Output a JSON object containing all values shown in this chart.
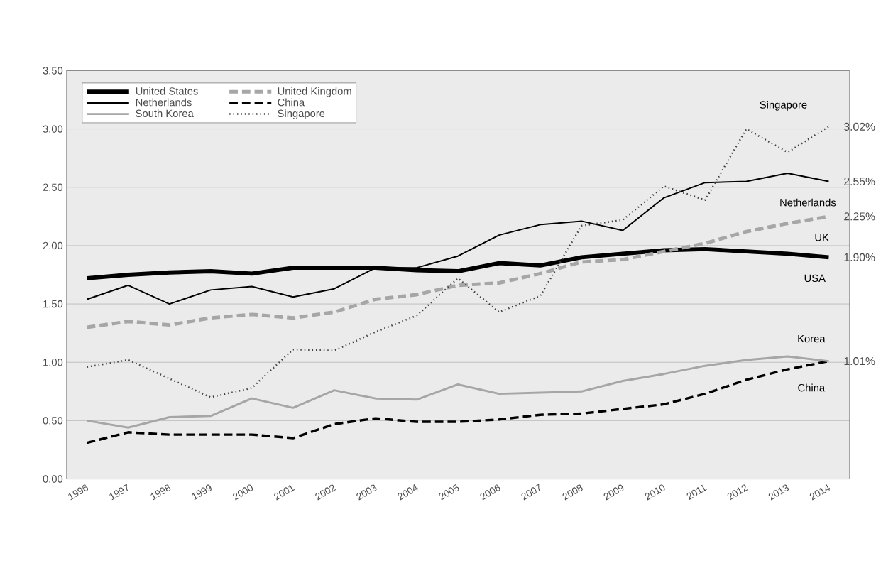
{
  "chart_data": {
    "type": "line",
    "categories": [
      "1996",
      "1997",
      "1998",
      "1999",
      "2000",
      "2001",
      "2002",
      "2003",
      "2004",
      "2005",
      "2006",
      "2007",
      "2008",
      "2009",
      "2010",
      "2011",
      "2012",
      "2013",
      "2014"
    ],
    "series": [
      {
        "name": "United States",
        "color": "#000000",
        "line_style": "solid",
        "values": [
          1.72,
          1.75,
          1.77,
          1.78,
          1.76,
          1.81,
          1.81,
          1.81,
          1.79,
          1.78,
          1.85,
          1.83,
          1.9,
          1.93,
          1.96,
          1.97,
          1.95,
          1.93,
          1.9
        ]
      },
      {
        "name": "United Kingdom",
        "color": "#a6a6a6",
        "line_style": "dashed",
        "values": [
          1.3,
          1.35,
          1.32,
          1.38,
          1.41,
          1.38,
          1.43,
          1.54,
          1.58,
          1.66,
          1.68,
          1.76,
          1.86,
          1.88,
          1.95,
          2.02,
          2.12,
          2.19,
          2.25
        ]
      },
      {
        "name": "Netherlands",
        "color": "#000000",
        "line_style": "solid",
        "values": [
          1.54,
          1.66,
          1.5,
          1.62,
          1.65,
          1.56,
          1.63,
          1.81,
          1.81,
          1.91,
          2.09,
          2.18,
          2.21,
          2.13,
          2.41,
          2.54,
          2.55,
          2.62,
          2.55
        ]
      },
      {
        "name": "China",
        "color": "#000000",
        "line_style": "dashed",
        "values": [
          0.31,
          0.4,
          0.38,
          0.38,
          0.38,
          0.35,
          0.47,
          0.52,
          0.49,
          0.49,
          0.51,
          0.55,
          0.56,
          0.6,
          0.64,
          0.73,
          0.85,
          0.94,
          1.01
        ]
      },
      {
        "name": "South Korea",
        "color": "#a6a6a6",
        "line_style": "solid",
        "values": [
          0.5,
          0.44,
          0.53,
          0.54,
          0.69,
          0.61,
          0.76,
          0.69,
          0.68,
          0.81,
          0.73,
          0.74,
          0.75,
          0.84,
          0.9,
          0.97,
          1.02,
          1.05,
          1.01
        ]
      },
      {
        "name": "Singapore",
        "color": "#404040",
        "line_style": "dotted",
        "values": [
          0.96,
          1.02,
          0.86,
          0.7,
          0.78,
          1.11,
          1.1,
          1.26,
          1.4,
          1.72,
          1.43,
          1.57,
          2.17,
          2.22,
          2.51,
          2.39,
          3.0,
          2.8,
          3.02
        ]
      }
    ],
    "ylim": [
      0,
      3.5
    ],
    "yticks": [
      {
        "value": 0,
        "label": "0.00"
      },
      {
        "value": 0.5,
        "label": "0.50"
      },
      {
        "value": 1,
        "label": "1.00"
      },
      {
        "value": 1.5,
        "label": "1.50"
      },
      {
        "value": 2,
        "label": "2.00"
      },
      {
        "value": 2.5,
        "label": "2.50"
      },
      {
        "value": 3,
        "label": "3.00"
      },
      {
        "value": 3.5,
        "label": "3.50"
      }
    ],
    "grid": "y",
    "legend": "top left",
    "marker": "none",
    "annotations": [
      {
        "text": "Singapore",
        "x": "2014",
        "y": 3.02
      },
      {
        "text": "3.02%",
        "x": "2014",
        "y": 3.02
      },
      {
        "text": "2.55%",
        "x": "2014",
        "y": 2.55
      },
      {
        "text": "Netherlands",
        "x": "2014",
        "y": 2.55
      },
      {
        "text": "2.25%",
        "x": "2014",
        "y": 2.25
      },
      {
        "text": "UK",
        "x": "2014",
        "y": 2.25
      },
      {
        "text": "1.90%",
        "x": "2014",
        "y": 1.9
      },
      {
        "text": "USA",
        "x": "2014",
        "y": 1.9
      },
      {
        "text": "Korea",
        "x": "2014",
        "y": 1.01
      },
      {
        "text": "1.01%",
        "x": "2014",
        "y": 1.01
      },
      {
        "text": "China",
        "x": "2014",
        "y": 1.01
      }
    ]
  }
}
